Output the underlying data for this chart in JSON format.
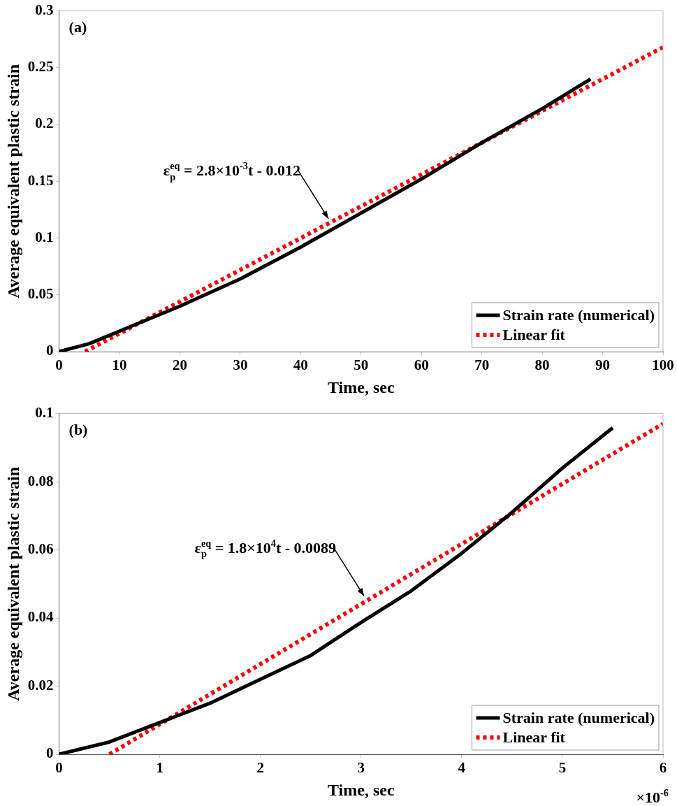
{
  "chart_data": [
    {
      "type": "line",
      "xlabel": "Time, sec",
      "ylabel": "Average equivalent plastic strain",
      "xlim": [
        0,
        100
      ],
      "xticks": [
        0,
        10,
        20,
        30,
        40,
        50,
        60,
        70,
        80,
        90,
        100
      ],
      "ylim": [
        0,
        0.3
      ],
      "yticks": [
        0,
        0.05,
        0.1,
        0.15,
        0.2,
        0.25,
        0.3
      ],
      "grid": false,
      "legend": "bottom right",
      "marker": "none",
      "annotations": [
        "(a)",
        {
          "text": "ε$_{p}$$^{eq}$ = 2.8×10$^{-3}$t - 0.012",
          "x": 44.6,
          "y": 0.117
        }
      ],
      "series": [
        {
          "name": "Strain rate (numerical)",
          "color": "#000000",
          "line_style": "solid",
          "x": [
            0,
            5,
            10,
            20,
            30,
            40,
            50,
            60,
            70,
            80,
            88
          ],
          "values": [
            0,
            0.007,
            0.018,
            0.04,
            0.064,
            0.092,
            0.122,
            0.152,
            0.184,
            0.214,
            0.24
          ]
        },
        {
          "name": "Linear fit",
          "color": "#ff0000",
          "type": "line",
          "line_style": "dotted",
          "x": [
            4.3,
            100
          ],
          "values": [
            0,
            0.268
          ]
        }
      ]
    },
    {
      "type": "line",
      "xlabel": "Time, sec",
      "ylabel": "Average equivalent plastic strain",
      "xlim": [
        0,
        6
      ],
      "xticks": [
        0,
        1,
        2,
        3,
        4,
        5,
        6
      ],
      "ylim": [
        0,
        0.1
      ],
      "yticks": [
        0,
        0.02,
        0.04,
        0.06,
        0.08,
        0.1
      ],
      "grid": false,
      "legend": "bottom right",
      "marker": "none",
      "annotations": [
        "(b)",
        "×10$^{-6}$",
        {
          "text": "ε$_{p}$$^{eq}$ = 1.8×10$^{4}$t - 0.0089",
          "x": 3.03,
          "y": 0.0464
        }
      ],
      "series": [
        {
          "name": "Strain rate (numerical)",
          "color": "#000000",
          "line_style": "solid",
          "x": [
            0,
            0.5,
            1,
            1.5,
            2,
            2.5,
            3,
            3.5,
            4,
            4.5,
            5,
            5.5
          ],
          "values": [
            0,
            0.0036,
            0.0093,
            0.015,
            0.022,
            0.029,
            0.0387,
            0.048,
            0.059,
            0.071,
            0.084,
            0.0958
          ]
        },
        {
          "name": "Linear fit",
          "color": "#ff0000",
          "type": "line",
          "line_style": "dotted",
          "x": [
            0.5,
            6
          ],
          "values": [
            0,
            0.097
          ]
        }
      ]
    }
  ]
}
